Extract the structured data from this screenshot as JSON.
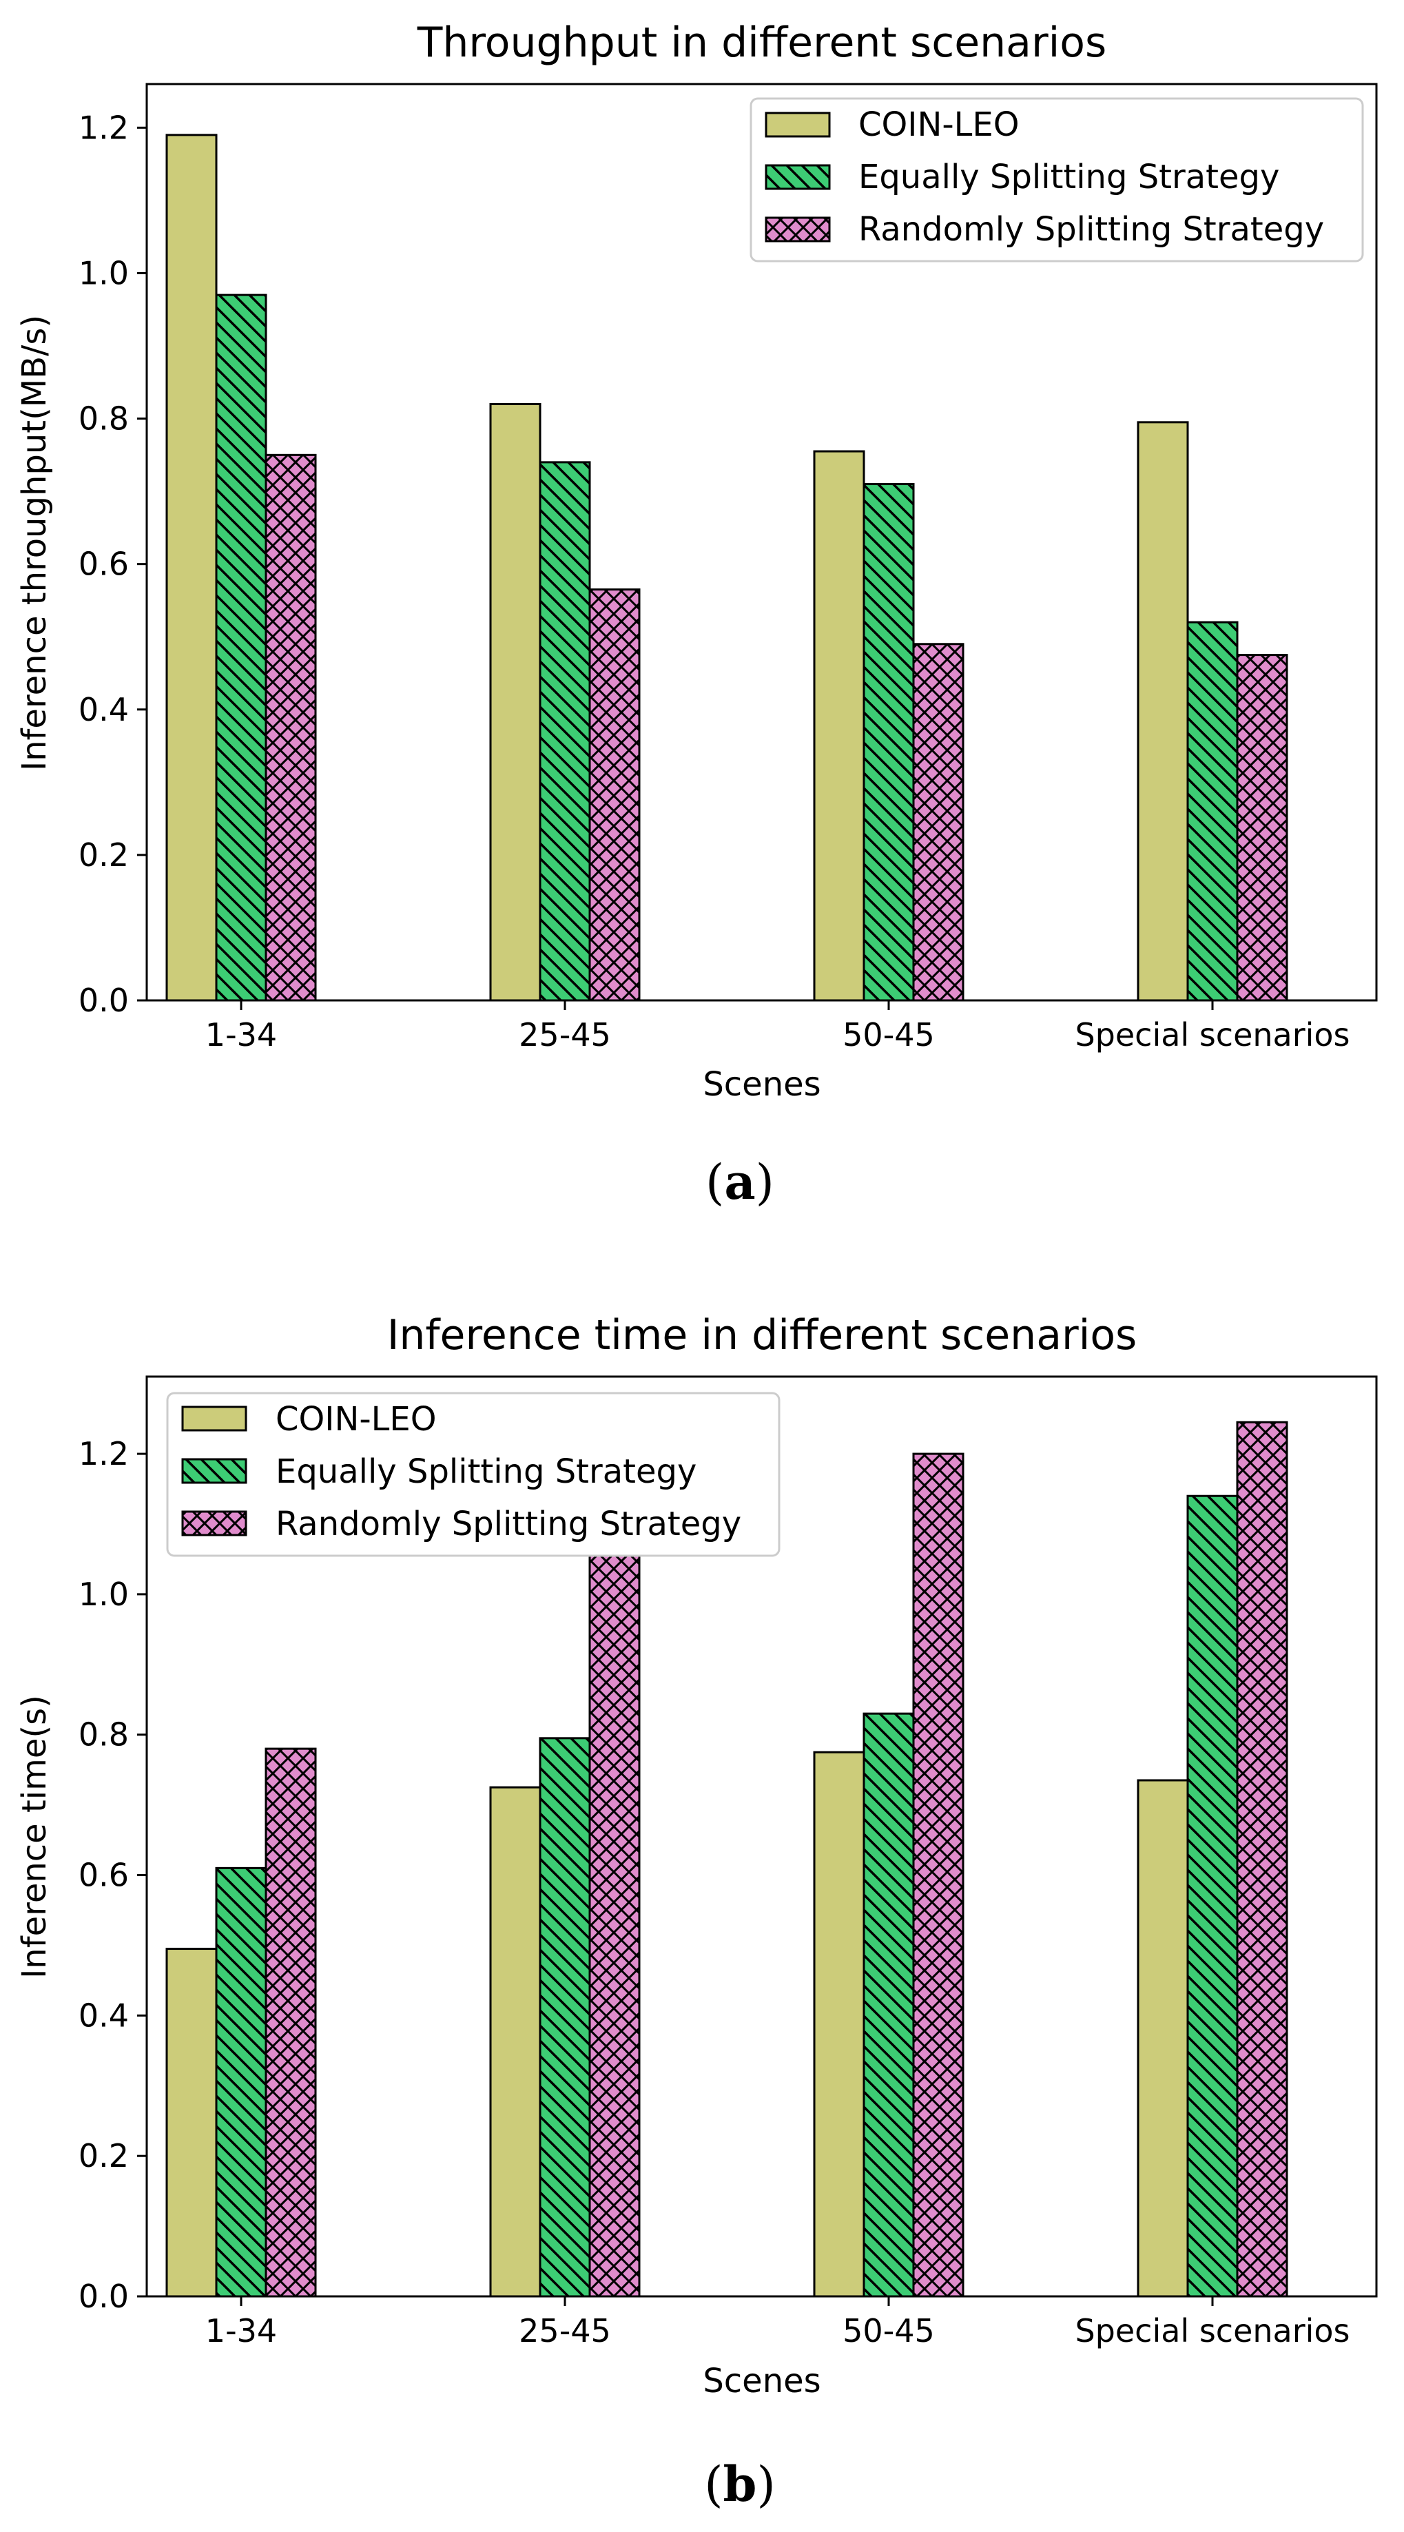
{
  "chart_data": [
    {
      "type": "bar",
      "panel_label": "a",
      "title": "Throughput in different scenarios",
      "xlabel": "Scenes",
      "ylabel": "Inference throughput(MB/s)",
      "categories": [
        "1-34",
        "25-45",
        "50-45",
        "Special scenarios"
      ],
      "ylim": [
        0,
        1.26
      ],
      "yticks": [
        "0.0",
        "0.2",
        "0.4",
        "0.6",
        "0.8",
        "1.0",
        "1.2"
      ],
      "legend_position": "top-right",
      "series": [
        {
          "name": "COIN-LEO",
          "values": [
            1.19,
            0.82,
            0.755,
            0.795
          ]
        },
        {
          "name": "Equally Splitting Strategy",
          "values": [
            0.97,
            0.74,
            0.71,
            0.52
          ]
        },
        {
          "name": "Randomly Splitting Strategy",
          "values": [
            0.75,
            0.565,
            0.49,
            0.475
          ]
        }
      ]
    },
    {
      "type": "bar",
      "panel_label": "b",
      "title": "Inference time in different scenarios",
      "xlabel": "Scenes",
      "ylabel": "Inference time(s)",
      "categories": [
        "1-34",
        "25-45",
        "50-45",
        "Special scenarios"
      ],
      "ylim": [
        0,
        1.31
      ],
      "yticks": [
        "0.0",
        "0.2",
        "0.4",
        "0.6",
        "0.8",
        "1.0",
        "1.2"
      ],
      "legend_position": "top-left",
      "series": [
        {
          "name": "COIN-LEO",
          "values": [
            0.495,
            0.725,
            0.775,
            0.735
          ]
        },
        {
          "name": "Equally Splitting Strategy",
          "values": [
            0.61,
            0.795,
            0.83,
            1.14
          ]
        },
        {
          "name": "Randomly Splitting Strategy",
          "values": [
            0.78,
            1.08,
            1.2,
            1.245
          ]
        }
      ]
    }
  ],
  "series_colors": [
    "#cccc7a",
    "#3dcc74",
    "#e08ccc"
  ]
}
